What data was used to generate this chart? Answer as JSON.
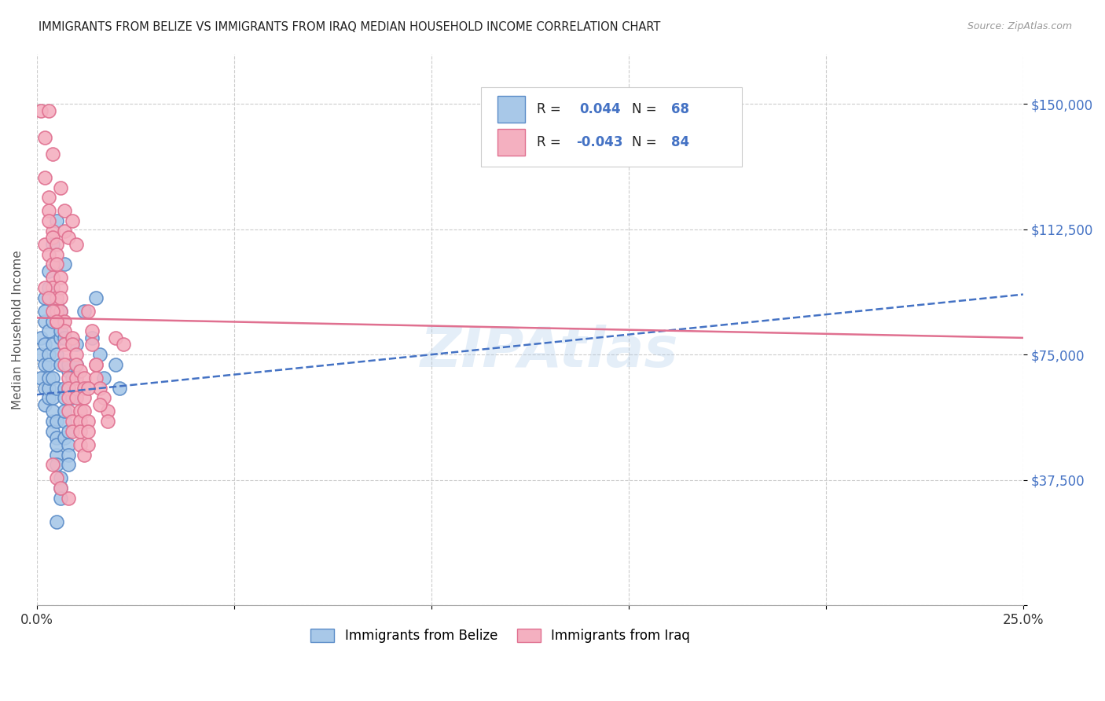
{
  "title": "IMMIGRANTS FROM BELIZE VS IMMIGRANTS FROM IRAQ MEDIAN HOUSEHOLD INCOME CORRELATION CHART",
  "source": "Source: ZipAtlas.com",
  "ylabel": "Median Household Income",
  "xlim": [
    0.0,
    0.25
  ],
  "ylim": [
    0,
    165000
  ],
  "yticks": [
    0,
    37500,
    75000,
    112500,
    150000
  ],
  "ytick_labels": [
    "",
    "$37,500",
    "$75,000",
    "$112,500",
    "$150,000"
  ],
  "xticks": [
    0.0,
    0.05,
    0.1,
    0.15,
    0.2,
    0.25
  ],
  "xtick_labels": [
    "0.0%",
    "",
    "",
    "",
    "",
    "25.0%"
  ],
  "belize_color": "#a8c8e8",
  "iraq_color": "#f4b0c0",
  "belize_edge_color": "#5b8cc8",
  "iraq_edge_color": "#e07090",
  "belize_line_color": "#4472c4",
  "iraq_line_color": "#e07090",
  "tick_label_color": "#4472c4",
  "background_color": "#ffffff",
  "watermark": "ZIPAtlas",
  "belize_line_x": [
    0.0,
    0.25
  ],
  "belize_line_y": [
    63000,
    93000
  ],
  "iraq_line_x": [
    0.0,
    0.25
  ],
  "iraq_line_y": [
    86000,
    80000
  ],
  "belize_scatter": [
    [
      0.001,
      68000
    ],
    [
      0.001,
      75000
    ],
    [
      0.001,
      80000
    ],
    [
      0.002,
      72000
    ],
    [
      0.002,
      85000
    ],
    [
      0.002,
      65000
    ],
    [
      0.002,
      92000
    ],
    [
      0.002,
      60000
    ],
    [
      0.002,
      78000
    ],
    [
      0.002,
      88000
    ],
    [
      0.003,
      82000
    ],
    [
      0.003,
      62000
    ],
    [
      0.003,
      75000
    ],
    [
      0.003,
      95000
    ],
    [
      0.003,
      72000
    ],
    [
      0.003,
      65000
    ],
    [
      0.003,
      100000
    ],
    [
      0.003,
      68000
    ],
    [
      0.004,
      55000
    ],
    [
      0.004,
      108000
    ],
    [
      0.004,
      58000
    ],
    [
      0.004,
      52000
    ],
    [
      0.004,
      62000
    ],
    [
      0.004,
      68000
    ],
    [
      0.004,
      78000
    ],
    [
      0.004,
      85000
    ],
    [
      0.005,
      45000
    ],
    [
      0.005,
      50000
    ],
    [
      0.005,
      48000
    ],
    [
      0.005,
      55000
    ],
    [
      0.005,
      42000
    ],
    [
      0.005,
      75000
    ],
    [
      0.005,
      115000
    ],
    [
      0.005,
      65000
    ],
    [
      0.005,
      90000
    ],
    [
      0.006,
      38000
    ],
    [
      0.006,
      35000
    ],
    [
      0.006,
      32000
    ],
    [
      0.006,
      80000
    ],
    [
      0.006,
      82000
    ],
    [
      0.006,
      72000
    ],
    [
      0.006,
      88000
    ],
    [
      0.007,
      65000
    ],
    [
      0.007,
      80000
    ],
    [
      0.007,
      55000
    ],
    [
      0.007,
      58000
    ],
    [
      0.007,
      62000
    ],
    [
      0.007,
      50000
    ],
    [
      0.007,
      102000
    ],
    [
      0.008,
      48000
    ],
    [
      0.008,
      52000
    ],
    [
      0.008,
      45000
    ],
    [
      0.008,
      42000
    ],
    [
      0.008,
      65000
    ],
    [
      0.008,
      70000
    ],
    [
      0.008,
      72000
    ],
    [
      0.009,
      68000
    ],
    [
      0.009,
      62000
    ],
    [
      0.01,
      78000
    ],
    [
      0.01,
      72000
    ],
    [
      0.012,
      88000
    ],
    [
      0.014,
      80000
    ],
    [
      0.015,
      92000
    ],
    [
      0.016,
      75000
    ],
    [
      0.021,
      65000
    ],
    [
      0.017,
      68000
    ],
    [
      0.02,
      72000
    ],
    [
      0.005,
      25000
    ]
  ],
  "iraq_scatter": [
    [
      0.001,
      148000
    ],
    [
      0.002,
      140000
    ],
    [
      0.003,
      148000
    ],
    [
      0.004,
      135000
    ],
    [
      0.002,
      128000
    ],
    [
      0.003,
      122000
    ],
    [
      0.003,
      118000
    ],
    [
      0.004,
      112000
    ],
    [
      0.002,
      108000
    ],
    [
      0.003,
      105000
    ],
    [
      0.004,
      102000
    ],
    [
      0.004,
      98000
    ],
    [
      0.004,
      95000
    ],
    [
      0.005,
      92000
    ],
    [
      0.005,
      88000
    ],
    [
      0.005,
      85000
    ],
    [
      0.003,
      115000
    ],
    [
      0.004,
      110000
    ],
    [
      0.005,
      108000
    ],
    [
      0.005,
      105000
    ],
    [
      0.005,
      102000
    ],
    [
      0.006,
      98000
    ],
    [
      0.006,
      95000
    ],
    [
      0.006,
      92000
    ],
    [
      0.006,
      88000
    ],
    [
      0.007,
      85000
    ],
    [
      0.007,
      82000
    ],
    [
      0.007,
      78000
    ],
    [
      0.007,
      75000
    ],
    [
      0.007,
      72000
    ],
    [
      0.008,
      68000
    ],
    [
      0.008,
      65000
    ],
    [
      0.008,
      62000
    ],
    [
      0.008,
      58000
    ],
    [
      0.009,
      55000
    ],
    [
      0.009,
      52000
    ],
    [
      0.009,
      80000
    ],
    [
      0.009,
      78000
    ],
    [
      0.01,
      75000
    ],
    [
      0.01,
      72000
    ],
    [
      0.01,
      68000
    ],
    [
      0.01,
      65000
    ],
    [
      0.01,
      62000
    ],
    [
      0.011,
      58000
    ],
    [
      0.011,
      55000
    ],
    [
      0.011,
      52000
    ],
    [
      0.011,
      48000
    ],
    [
      0.012,
      45000
    ],
    [
      0.011,
      70000
    ],
    [
      0.012,
      68000
    ],
    [
      0.012,
      65000
    ],
    [
      0.012,
      62000
    ],
    [
      0.012,
      58000
    ],
    [
      0.013,
      55000
    ],
    [
      0.013,
      52000
    ],
    [
      0.013,
      48000
    ],
    [
      0.004,
      42000
    ],
    [
      0.005,
      38000
    ],
    [
      0.008,
      32000
    ],
    [
      0.006,
      35000
    ],
    [
      0.013,
      88000
    ],
    [
      0.014,
      82000
    ],
    [
      0.014,
      78000
    ],
    [
      0.015,
      72000
    ],
    [
      0.015,
      68000
    ],
    [
      0.016,
      65000
    ],
    [
      0.017,
      62000
    ],
    [
      0.018,
      58000
    ],
    [
      0.002,
      95000
    ],
    [
      0.003,
      92000
    ],
    [
      0.004,
      88000
    ],
    [
      0.005,
      85000
    ],
    [
      0.007,
      112000
    ],
    [
      0.008,
      110000
    ],
    [
      0.006,
      125000
    ],
    [
      0.007,
      118000
    ],
    [
      0.009,
      115000
    ],
    [
      0.01,
      108000
    ],
    [
      0.02,
      80000
    ],
    [
      0.022,
      78000
    ],
    [
      0.015,
      72000
    ],
    [
      0.013,
      65000
    ],
    [
      0.016,
      60000
    ],
    [
      0.018,
      55000
    ]
  ]
}
